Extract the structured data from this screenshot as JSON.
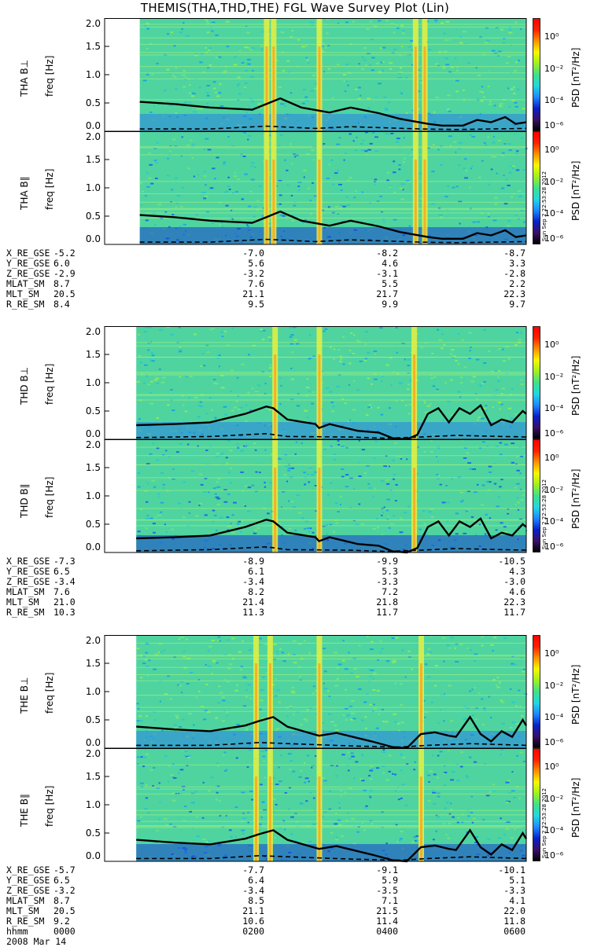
{
  "title": "THEMIS(THA,THD,THE) FGL Wave Survey Plot (Lin)",
  "colorbar": {
    "label": "PSD [nT²/Hz]",
    "ticks": [
      "10⁰",
      "10⁻²",
      "10⁻⁴",
      "10⁻⁶"
    ],
    "colors": [
      "#000000",
      "#3a0f66",
      "#0a20c8",
      "#1e88ff",
      "#22d8e0",
      "#3fe08a",
      "#9ff020",
      "#f8f800",
      "#ff9000",
      "#ff2000",
      "#ff0000"
    ]
  },
  "stamp": "Sun Sep  2 22:53:28 2012",
  "date_label": "2008 Mar 14",
  "time_row": {
    "label": "hhmm",
    "values": [
      "0000",
      "0200",
      "0400",
      "0600"
    ]
  },
  "chart_data": [
    {
      "type": "heatmap",
      "probe": "THA",
      "xlabel": "hhmm",
      "x_ticks": [
        "0000",
        "0200",
        "0400",
        "0600"
      ],
      "x_range_hours": [
        0,
        6
      ],
      "panels": [
        {
          "ylabel": "THA B⊥",
          "ylabel2": "freq [Hz]",
          "ylim": [
            0,
            2.0
          ],
          "yticks": [
            "0.0",
            "0.5",
            "1.0",
            "1.5",
            "2.0"
          ]
        },
        {
          "ylabel": "THA B∥",
          "ylabel2": "freq [Hz]",
          "ylim": [
            0,
            2.0
          ],
          "yticks": [
            "0.0",
            "0.5",
            "1.0",
            "1.5",
            "2.0"
          ]
        }
      ],
      "data_start_hours": 0.5,
      "series": [
        {
          "name": "solid",
          "x": [
            0.5,
            1.0,
            1.5,
            1.8,
            2.1,
            2.3,
            2.5,
            2.8,
            3.2,
            3.5,
            3.9,
            4.2,
            4.6,
            4.8,
            5.1,
            5.3,
            5.5,
            5.7,
            5.85,
            6.0
          ],
          "y": [
            0.52,
            0.48,
            0.42,
            0.4,
            0.38,
            0.48,
            0.58,
            0.42,
            0.33,
            0.42,
            0.32,
            0.22,
            0.13,
            0.1,
            0.1,
            0.2,
            0.16,
            0.25,
            0.13,
            0.16
          ]
        },
        {
          "name": "dashed",
          "x": [
            0.5,
            1.5,
            2.3,
            3.0,
            3.5,
            4.5,
            5.0,
            6.0
          ],
          "y": [
            0.04,
            0.04,
            0.09,
            0.05,
            0.08,
            0.04,
            0.03,
            0.05
          ]
        }
      ],
      "bright_bands_hours": [
        2.3,
        2.4,
        3.05,
        4.42,
        4.55
      ],
      "ephemeris": {
        "rows": [
          {
            "label": "X_RE_GSE",
            "values": [
              "-5.2",
              "-7.0",
              "-8.2",
              "-8.7"
            ]
          },
          {
            "label": "Y_RE_GSE",
            "values": [
              "6.0",
              "5.6",
              "4.6",
              "3.3"
            ]
          },
          {
            "label": "Z_RE_GSE",
            "values": [
              "-2.9",
              "-3.2",
              "-3.1",
              "-2.8"
            ]
          },
          {
            "label": "MLAT_SM",
            "values": [
              "8.7",
              "7.6",
              "5.5",
              "2.2"
            ]
          },
          {
            "label": "MLT_SM",
            "values": [
              "20.5",
              "21.1",
              "21.7",
              "22.3"
            ]
          },
          {
            "label": "R_RE_SM",
            "values": [
              "8.4",
              "9.5",
              "9.9",
              "9.7"
            ]
          }
        ]
      }
    },
    {
      "type": "heatmap",
      "probe": "THD",
      "xlabel": "hhmm",
      "x_ticks": [
        "0000",
        "0200",
        "0400",
        "0600"
      ],
      "x_range_hours": [
        0,
        6
      ],
      "panels": [
        {
          "ylabel": "THD B⊥",
          "ylabel2": "freq [Hz]",
          "ylim": [
            0,
            2.0
          ],
          "yticks": [
            "0.0",
            "0.5",
            "1.0",
            "1.5",
            "2.0"
          ]
        },
        {
          "ylabel": "THD B∥",
          "ylabel2": "freq [Hz]",
          "ylim": [
            0,
            2.0
          ],
          "yticks": [
            "0.0",
            "0.5",
            "1.0",
            "1.5",
            "2.0"
          ]
        }
      ],
      "data_start_hours": 0.45,
      "series": [
        {
          "name": "solid",
          "x": [
            0.45,
            1.0,
            1.5,
            2.0,
            2.3,
            2.4,
            2.6,
            3.0,
            3.05,
            3.2,
            3.6,
            3.9,
            4.1,
            4.3,
            4.45,
            4.6,
            4.75,
            4.9,
            5.05,
            5.2,
            5.35,
            5.5,
            5.65,
            5.8,
            5.95,
            6.0
          ],
          "y": [
            0.25,
            0.27,
            0.3,
            0.45,
            0.58,
            0.55,
            0.35,
            0.27,
            0.2,
            0.27,
            0.15,
            0.12,
            0.02,
            0.0,
            0.08,
            0.45,
            0.55,
            0.3,
            0.55,
            0.45,
            0.6,
            0.25,
            0.35,
            0.3,
            0.5,
            0.45
          ]
        },
        {
          "name": "dashed",
          "x": [
            0.45,
            1.5,
            2.3,
            2.6,
            3.5,
            4.0,
            4.5,
            5.0,
            6.0
          ],
          "y": [
            0.03,
            0.05,
            0.1,
            0.05,
            0.04,
            0.02,
            0.04,
            0.07,
            0.04
          ]
        }
      ],
      "bright_bands_hours": [
        2.42,
        3.05,
        4.4
      ],
      "ephemeris": {
        "rows": [
          {
            "label": "X_RE_GSE",
            "values": [
              "-7.3",
              "-8.9",
              "-9.9",
              "-10.5"
            ]
          },
          {
            "label": "Y_RE_GSE",
            "values": [
              "6.5",
              "6.1",
              "5.3",
              "4.3"
            ]
          },
          {
            "label": "Z_RE_GSE",
            "values": [
              "-3.4",
              "-3.4",
              "-3.3",
              "-3.0"
            ]
          },
          {
            "label": "MLAT_SM",
            "values": [
              "7.6",
              "8.2",
              "7.2",
              "4.6"
            ]
          },
          {
            "label": "MLT_SM",
            "values": [
              "21.0",
              "21.4",
              "21.8",
              "22.3"
            ]
          },
          {
            "label": "R_RE_SM",
            "values": [
              "10.3",
              "11.3",
              "11.7",
              "11.7"
            ]
          }
        ]
      }
    },
    {
      "type": "heatmap",
      "probe": "THE",
      "xlabel": "hhmm",
      "x_ticks": [
        "0000",
        "0200",
        "0400",
        "0600"
      ],
      "x_range_hours": [
        0,
        6
      ],
      "panels": [
        {
          "ylabel": "THE B⊥",
          "ylabel2": "freq [Hz]",
          "ylim": [
            0,
            2.0
          ],
          "yticks": [
            "0.0",
            "0.5",
            "1.0",
            "1.5",
            "2.0"
          ]
        },
        {
          "ylabel": "THE B∥",
          "ylabel2": "freq [Hz]",
          "ylim": [
            0,
            2.0
          ],
          "yticks": [
            "0.0",
            "0.5",
            "1.0",
            "1.5",
            "2.0"
          ]
        }
      ],
      "data_start_hours": 0.45,
      "series": [
        {
          "name": "solid",
          "x": [
            0.45,
            1.0,
            1.5,
            2.0,
            2.2,
            2.4,
            2.6,
            3.05,
            3.3,
            3.8,
            4.1,
            4.3,
            4.5,
            4.7,
            4.9,
            5.0,
            5.2,
            5.35,
            5.5,
            5.65,
            5.8,
            5.95,
            6.0
          ],
          "y": [
            0.38,
            0.33,
            0.3,
            0.4,
            0.48,
            0.55,
            0.38,
            0.22,
            0.27,
            0.12,
            0.02,
            0.0,
            0.25,
            0.28,
            0.22,
            0.2,
            0.55,
            0.25,
            0.12,
            0.3,
            0.2,
            0.5,
            0.4
          ]
        },
        {
          "name": "dashed",
          "x": [
            0.45,
            1.5,
            2.2,
            2.6,
            3.5,
            4.2,
            4.6,
            5.2,
            6.0
          ],
          "y": [
            0.05,
            0.05,
            0.1,
            0.08,
            0.04,
            0.02,
            0.05,
            0.08,
            0.05
          ]
        }
      ],
      "bright_bands_hours": [
        2.15,
        2.35,
        3.05,
        4.5
      ],
      "ephemeris": {
        "rows": [
          {
            "label": "X_RE_GSE",
            "values": [
              "-5.7",
              "-7.7",
              "-9.1",
              "-10.1"
            ]
          },
          {
            "label": "Y_RE_GSE",
            "values": [
              "6.5",
              "6.4",
              "5.9",
              "5.1"
            ]
          },
          {
            "label": "Z_RE_GSE",
            "values": [
              "-3.2",
              "-3.4",
              "-3.5",
              "-3.3"
            ]
          },
          {
            "label": "MLAT_SM",
            "values": [
              "8.7",
              "8.5",
              "7.1",
              "4.1"
            ]
          },
          {
            "label": "MLT_SM",
            "values": [
              "20.5",
              "21.1",
              "21.5",
              "22.0"
            ]
          },
          {
            "label": "R_RE_SM",
            "values": [
              "9.2",
              "10.6",
              "11.4",
              "11.8"
            ]
          }
        ]
      }
    }
  ]
}
